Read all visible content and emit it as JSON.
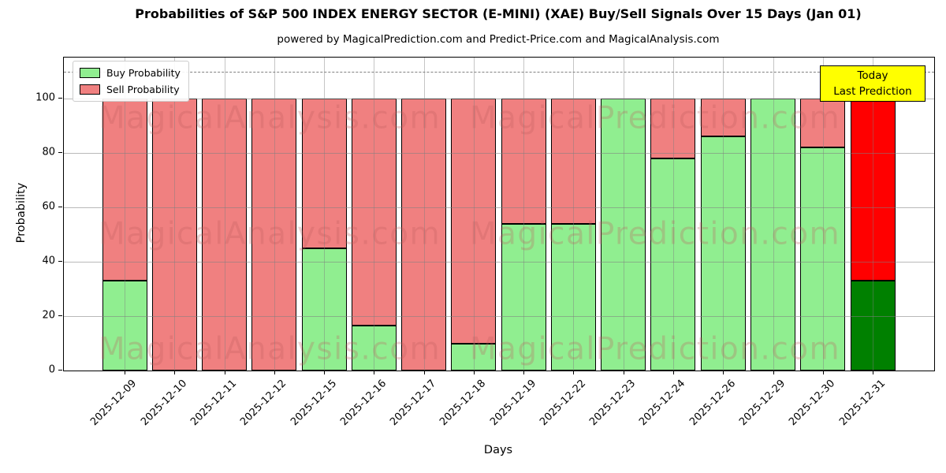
{
  "title": "Probabilities of S&P 500 INDEX ENERGY SECTOR (E-MINI) (XAE) Buy/Sell Signals Over 15 Days (Jan 01)",
  "subtitle": "powered by MagicalPrediction.com and Predict-Price.com and MagicalAnalysis.com",
  "axes": {
    "ylabel": "Probability",
    "xlabel": "Days",
    "yticks": [
      0,
      20,
      40,
      60,
      80,
      100
    ],
    "dashed_line_y": 110
  },
  "legend": [
    {
      "label": "Buy Probability",
      "color": "#90ee90"
    },
    {
      "label": "Sell Probability",
      "color": "#f08080"
    }
  ],
  "annotation_box": {
    "line1": "Today",
    "line2": "Last Prediction",
    "bg": "#ffff00"
  },
  "watermarks": {
    "left_text": "MagicalAnalysis.com",
    "right_text": "MagicalPrediction.com"
  },
  "chart_data": {
    "type": "bar",
    "stacked": true,
    "title": "Probabilities of S&P 500 INDEX ENERGY SECTOR (E-MINI) (XAE) Buy/Sell Signals Over 15 Days (Jan 01)",
    "xlabel": "Days",
    "ylabel": "Probability",
    "ylim": [
      0,
      115
    ],
    "grid": true,
    "legend_position": "upper left",
    "threshold_dashed_line": 110,
    "categories": [
      "2025-12-09",
      "2025-12-10",
      "2025-12-11",
      "2025-12-12",
      "2025-12-15",
      "2025-12-16",
      "2025-12-17",
      "2025-12-18",
      "2025-12-19",
      "2025-12-22",
      "2025-12-23",
      "2025-12-24",
      "2025-12-26",
      "2025-12-29",
      "2025-12-30",
      "2025-12-31"
    ],
    "series": [
      {
        "name": "Buy Probability",
        "color": "#90ee90",
        "values": [
          33,
          0,
          0,
          0,
          45,
          16.5,
          0,
          10,
          54,
          54,
          100,
          78,
          86,
          100,
          82,
          33
        ]
      },
      {
        "name": "Sell Probability",
        "color": "#f08080",
        "values": [
          67,
          100,
          100,
          100,
          55,
          83.5,
          100,
          90,
          46,
          46,
          0,
          22,
          14,
          0,
          18,
          67
        ]
      }
    ],
    "last_bar_highlight": {
      "buy_color": "#008000",
      "sell_color": "#ff0000",
      "label": "Today Last Prediction"
    }
  }
}
